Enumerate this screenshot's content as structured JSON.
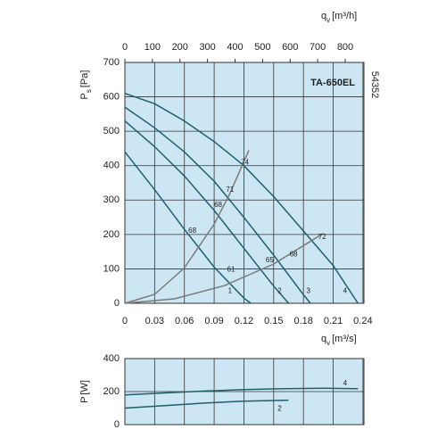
{
  "chart_data": [
    {
      "type": "line",
      "title": "TA-650EL",
      "code": "54352",
      "xlabel": {
        "symbol": "q",
        "subscript": "v",
        "unit": "[m³/s]"
      },
      "x2label": {
        "symbol": "q",
        "subscript": "v",
        "unit": "[m³/h]"
      },
      "ylabel": {
        "symbol": "P",
        "subscript": "s",
        "unit": "[Pa]"
      },
      "xlim": [
        0,
        0.241
      ],
      "xticks": [
        0,
        0.03,
        0.06,
        0.09,
        0.12,
        0.15,
        0.18,
        0.21,
        0.24
      ],
      "x2lim": [
        0,
        868
      ],
      "x2ticks": [
        0,
        100,
        200,
        300,
        400,
        500,
        600,
        700,
        800
      ],
      "ylim": [
        0,
        700
      ],
      "yticks": [
        0,
        100,
        200,
        300,
        400,
        500,
        600,
        700
      ],
      "grid": true,
      "series": [
        {
          "color": "#1f5f6f",
          "x": [
            0,
            0.03,
            0.06,
            0.09,
            0.12,
            0.127
          ],
          "values": [
            440,
            330,
            215,
            105,
            15,
            0
          ]
        },
        {
          "color": "#1f5f6f",
          "x": [
            0,
            0.03,
            0.06,
            0.09,
            0.12,
            0.15,
            0.165
          ],
          "values": [
            530,
            455,
            370,
            270,
            160,
            50,
            0
          ]
        },
        {
          "color": "#1f5f6f",
          "x": [
            0,
            0.03,
            0.06,
            0.09,
            0.12,
            0.15,
            0.18,
            0.187
          ],
          "values": [
            570,
            510,
            440,
            355,
            250,
            140,
            25,
            0
          ]
        },
        {
          "color": "#1f5f6f",
          "x": [
            0,
            0.03,
            0.06,
            0.09,
            0.12,
            0.15,
            0.18,
            0.21,
            0.235
          ],
          "values": [
            610,
            580,
            530,
            470,
            400,
            310,
            210,
            110,
            0
          ]
        },
        {
          "color": "#7a7a7a",
          "x": [
            0,
            0.03,
            0.06,
            0.09,
            0.105,
            0.125
          ],
          "values": [
            0,
            26,
            103,
            230,
            314,
            445
          ]
        },
        {
          "color": "#7a7a7a",
          "x": [
            0,
            0.05,
            0.1,
            0.15,
            0.2
          ],
          "values": [
            0,
            13,
            51,
            114,
            203
          ]
        }
      ],
      "annotations": [
        {
          "text": "74",
          "x": 0.121,
          "y": 408
        },
        {
          "text": "71",
          "x": 0.106,
          "y": 330
        },
        {
          "text": "68",
          "x": 0.094,
          "y": 285
        },
        {
          "text": "68",
          "x": 0.068,
          "y": 210
        },
        {
          "text": "61",
          "x": 0.107,
          "y": 97
        },
        {
          "text": "65",
          "x": 0.146,
          "y": 125
        },
        {
          "text": "68",
          "x": 0.17,
          "y": 142
        },
        {
          "text": "72",
          "x": 0.199,
          "y": 192
        },
        {
          "text": "1",
          "x": 0.106,
          "y": 35
        },
        {
          "text": "2",
          "x": 0.156,
          "y": 35
        },
        {
          "text": "3",
          "x": 0.185,
          "y": 35
        },
        {
          "text": "4",
          "x": 0.222,
          "y": 35
        }
      ]
    },
    {
      "type": "line",
      "ylabel": {
        "symbol": "P",
        "unit": "[W]"
      },
      "xlim": [
        0,
        0.241
      ],
      "xticks": [
        0,
        0.03,
        0.06,
        0.09,
        0.12,
        0.15,
        0.18,
        0.21,
        0.24
      ],
      "ylim": [
        0,
        400
      ],
      "yticks": [
        0,
        200,
        400
      ],
      "grid": true,
      "series": [
        {
          "color": "#1f5f6f",
          "x": [
            0,
            0.04,
            0.08,
            0.12,
            0.16,
            0.2,
            0.235
          ],
          "values": [
            180,
            192,
            203,
            212,
            218,
            220,
            218
          ]
        },
        {
          "color": "#1f5f6f",
          "x": [
            0,
            0.04,
            0.08,
            0.12,
            0.165
          ],
          "values": [
            100,
            115,
            130,
            142,
            148
          ]
        }
      ],
      "annotations": [
        {
          "text": "4",
          "x": 0.222,
          "y": 250
        },
        {
          "text": "2",
          "x": 0.156,
          "y": 95
        }
      ]
    }
  ]
}
